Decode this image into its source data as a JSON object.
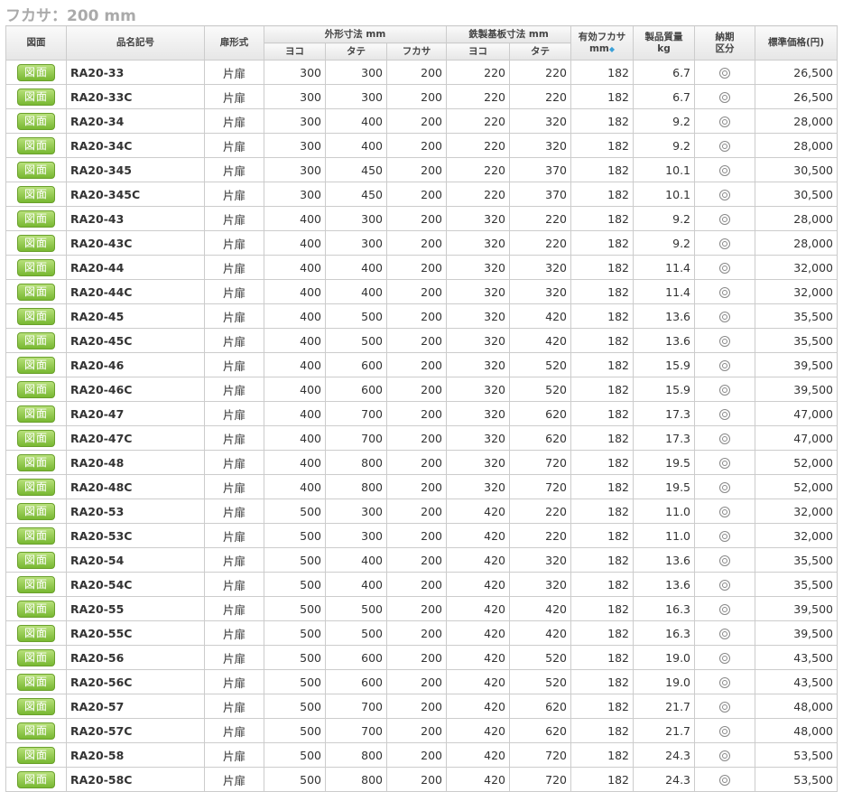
{
  "title": "フカサ：200 mm",
  "headers": {
    "drawing": "図面",
    "model": "品名記号",
    "door": "扉形式",
    "outer": "外形寸法 mm",
    "yoko": "ヨコ",
    "tate": "タテ",
    "fukasa": "フカサ",
    "plate": "鉄製基板寸法 mm",
    "eff1": "有効フカサ",
    "eff2": "mm",
    "weight1": "製品質量",
    "weight2": "kg",
    "lead1": "納期",
    "lead2": "区分",
    "price": "標準価格(円)"
  },
  "button_label": "図面",
  "door_type": "片扉",
  "lead_icon": "double-circle",
  "rows": [
    [
      "RA20-33",
      "300",
      "300",
      "200",
      "220",
      "220",
      "182",
      "6.7",
      "26,500"
    ],
    [
      "RA20-33C",
      "300",
      "300",
      "200",
      "220",
      "220",
      "182",
      "6.7",
      "26,500"
    ],
    [
      "RA20-34",
      "300",
      "400",
      "200",
      "220",
      "320",
      "182",
      "9.2",
      "28,000"
    ],
    [
      "RA20-34C",
      "300",
      "400",
      "200",
      "220",
      "320",
      "182",
      "9.2",
      "28,000"
    ],
    [
      "RA20-345",
      "300",
      "450",
      "200",
      "220",
      "370",
      "182",
      "10.1",
      "30,500"
    ],
    [
      "RA20-345C",
      "300",
      "450",
      "200",
      "220",
      "370",
      "182",
      "10.1",
      "30,500"
    ],
    [
      "RA20-43",
      "400",
      "300",
      "200",
      "320",
      "220",
      "182",
      "9.2",
      "28,000"
    ],
    [
      "RA20-43C",
      "400",
      "300",
      "200",
      "320",
      "220",
      "182",
      "9.2",
      "28,000"
    ],
    [
      "RA20-44",
      "400",
      "400",
      "200",
      "320",
      "320",
      "182",
      "11.4",
      "32,000"
    ],
    [
      "RA20-44C",
      "400",
      "400",
      "200",
      "320",
      "320",
      "182",
      "11.4",
      "32,000"
    ],
    [
      "RA20-45",
      "400",
      "500",
      "200",
      "320",
      "420",
      "182",
      "13.6",
      "35,500"
    ],
    [
      "RA20-45C",
      "400",
      "500",
      "200",
      "320",
      "420",
      "182",
      "13.6",
      "35,500"
    ],
    [
      "RA20-46",
      "400",
      "600",
      "200",
      "320",
      "520",
      "182",
      "15.9",
      "39,500"
    ],
    [
      "RA20-46C",
      "400",
      "600",
      "200",
      "320",
      "520",
      "182",
      "15.9",
      "39,500"
    ],
    [
      "RA20-47",
      "400",
      "700",
      "200",
      "320",
      "620",
      "182",
      "17.3",
      "47,000"
    ],
    [
      "RA20-47C",
      "400",
      "700",
      "200",
      "320",
      "620",
      "182",
      "17.3",
      "47,000"
    ],
    [
      "RA20-48",
      "400",
      "800",
      "200",
      "320",
      "720",
      "182",
      "19.5",
      "52,000"
    ],
    [
      "RA20-48C",
      "400",
      "800",
      "200",
      "320",
      "720",
      "182",
      "19.5",
      "52,000"
    ],
    [
      "RA20-53",
      "500",
      "300",
      "200",
      "420",
      "220",
      "182",
      "11.0",
      "32,000"
    ],
    [
      "RA20-53C",
      "500",
      "300",
      "200",
      "420",
      "220",
      "182",
      "11.0",
      "32,000"
    ],
    [
      "RA20-54",
      "500",
      "400",
      "200",
      "420",
      "320",
      "182",
      "13.6",
      "35,500"
    ],
    [
      "RA20-54C",
      "500",
      "400",
      "200",
      "420",
      "320",
      "182",
      "13.6",
      "35,500"
    ],
    [
      "RA20-55",
      "500",
      "500",
      "200",
      "420",
      "420",
      "182",
      "16.3",
      "39,500"
    ],
    [
      "RA20-55C",
      "500",
      "500",
      "200",
      "420",
      "420",
      "182",
      "16.3",
      "39,500"
    ],
    [
      "RA20-56",
      "500",
      "600",
      "200",
      "420",
      "520",
      "182",
      "19.0",
      "43,500"
    ],
    [
      "RA20-56C",
      "500",
      "600",
      "200",
      "420",
      "520",
      "182",
      "19.0",
      "43,500"
    ],
    [
      "RA20-57",
      "500",
      "700",
      "200",
      "420",
      "620",
      "182",
      "21.7",
      "48,000"
    ],
    [
      "RA20-57C",
      "500",
      "700",
      "200",
      "420",
      "620",
      "182",
      "21.7",
      "48,000"
    ],
    [
      "RA20-58",
      "500",
      "800",
      "200",
      "420",
      "720",
      "182",
      "24.3",
      "53,500"
    ],
    [
      "RA20-58C",
      "500",
      "800",
      "200",
      "420",
      "720",
      "182",
      "24.3",
      "53,500"
    ]
  ]
}
